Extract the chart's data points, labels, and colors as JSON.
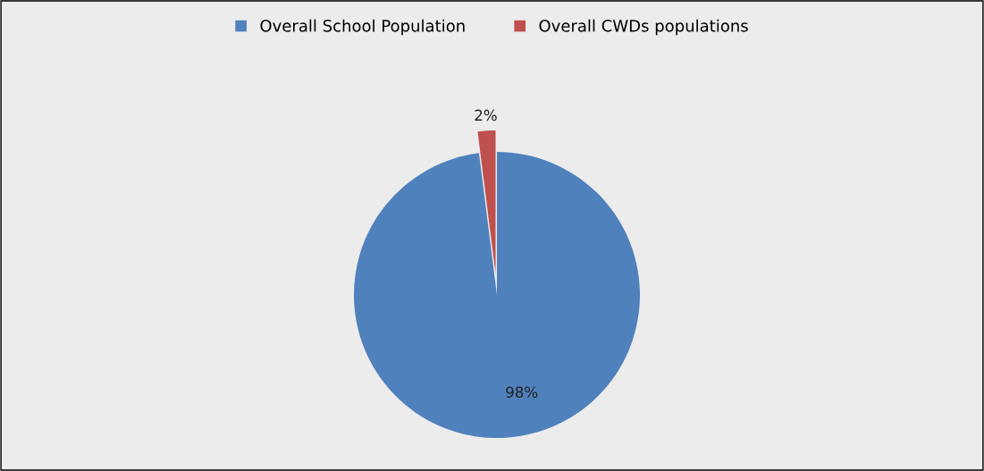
{
  "chart_data": {
    "type": "pie",
    "categories": [
      "Overall School Population",
      "Overall CWDs populations"
    ],
    "values": [
      98,
      2
    ],
    "colors": [
      "#4f81bd",
      "#c0504d"
    ],
    "value_labels": [
      "98%",
      "2%"
    ],
    "legend": "top"
  }
}
